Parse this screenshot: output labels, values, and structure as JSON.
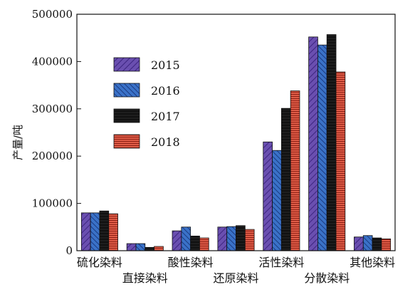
{
  "chart_data": {
    "type": "bar",
    "ylabel": "产量/吨",
    "ylim": [
      0,
      500000
    ],
    "yticks": [
      0,
      100000,
      200000,
      300000,
      400000,
      500000
    ],
    "ytick_labels": [
      "0",
      "100000",
      "200000",
      "300000",
      "400000",
      "500000"
    ],
    "grid": false,
    "legend_position": "upper-left",
    "categories": [
      "硫化染料",
      "直接染料",
      "酸性染料",
      "还原染料",
      "活性染料",
      "分散染料",
      "其他染料"
    ],
    "series": [
      {
        "name": "2015",
        "color": "#5b3d9e",
        "pattern": "purple",
        "values": [
          80000,
          15000,
          42000,
          50000,
          230000,
          452000,
          29000
        ]
      },
      {
        "name": "2016",
        "color": "#2f5fb3",
        "pattern": "blue",
        "values": [
          80000,
          15000,
          50000,
          51000,
          212000,
          435000,
          32000
        ]
      },
      {
        "name": "2017",
        "color": "#111111",
        "pattern": "black",
        "values": [
          84000,
          7000,
          31000,
          53000,
          301000,
          457000,
          27000
        ]
      },
      {
        "name": "2018",
        "color": "#d23a2a",
        "pattern": "red",
        "values": [
          78000,
          9000,
          27000,
          45000,
          338000,
          378000,
          25000
        ]
      }
    ]
  }
}
